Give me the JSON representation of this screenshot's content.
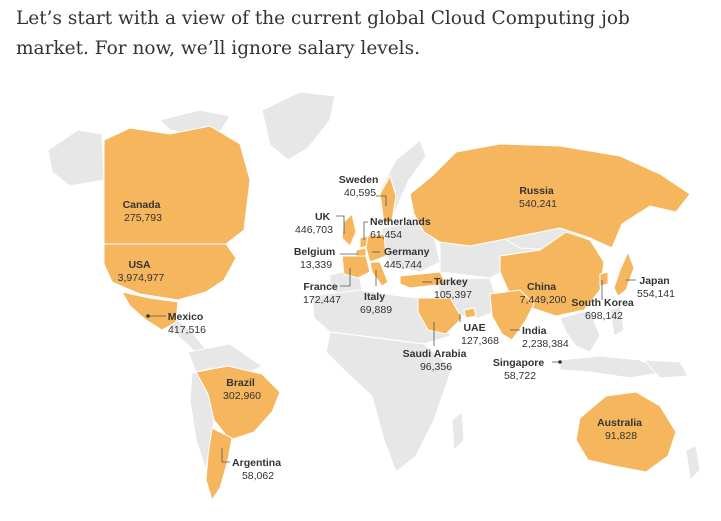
{
  "intro_text": "Let’s start with a view of the current global Cloud Computing job market. For now, we’ll ignore salary levels.",
  "colors": {
    "highlight": "#f5b65e",
    "land": "#e7e7e7",
    "text": "#333333"
  },
  "countries": [
    {
      "id": "canada",
      "name": "Canada",
      "value": "275,793"
    },
    {
      "id": "usa",
      "name": "USA",
      "value": "3,974,977"
    },
    {
      "id": "mexico",
      "name": "Mexico",
      "value": "417,516"
    },
    {
      "id": "brazil",
      "name": "Brazil",
      "value": "302,960"
    },
    {
      "id": "argentina",
      "name": "Argentina",
      "value": "58,062"
    },
    {
      "id": "uk",
      "name": "UK",
      "value": "446,703"
    },
    {
      "id": "sweden",
      "name": "Sweden",
      "value": "40,595"
    },
    {
      "id": "netherlands",
      "name": "Netherlands",
      "value": "61,454"
    },
    {
      "id": "belgium",
      "name": "Belgium",
      "value": "13,339"
    },
    {
      "id": "germany",
      "name": "Germany",
      "value": "445,744"
    },
    {
      "id": "france",
      "name": "France",
      "value": "172,447"
    },
    {
      "id": "italy",
      "name": "Italy",
      "value": "69,889"
    },
    {
      "id": "turkey",
      "name": "Turkey",
      "value": "105,397"
    },
    {
      "id": "russia",
      "name": "Russia",
      "value": "540,241"
    },
    {
      "id": "china",
      "name": "China",
      "value": "7,449,200"
    },
    {
      "id": "japan",
      "name": "Japan",
      "value": "554,141"
    },
    {
      "id": "south_korea",
      "name": "South Korea",
      "value": "698,142"
    },
    {
      "id": "uae",
      "name": "UAE",
      "value": "127,368"
    },
    {
      "id": "india",
      "name": "India",
      "value": "2,238,384"
    },
    {
      "id": "saudi_arabia",
      "name": "Saudi Arabia",
      "value": "96,356"
    },
    {
      "id": "singapore",
      "name": "Singapore",
      "value": "58,722"
    },
    {
      "id": "australia",
      "name": "Australia",
      "value": "91,828"
    }
  ]
}
